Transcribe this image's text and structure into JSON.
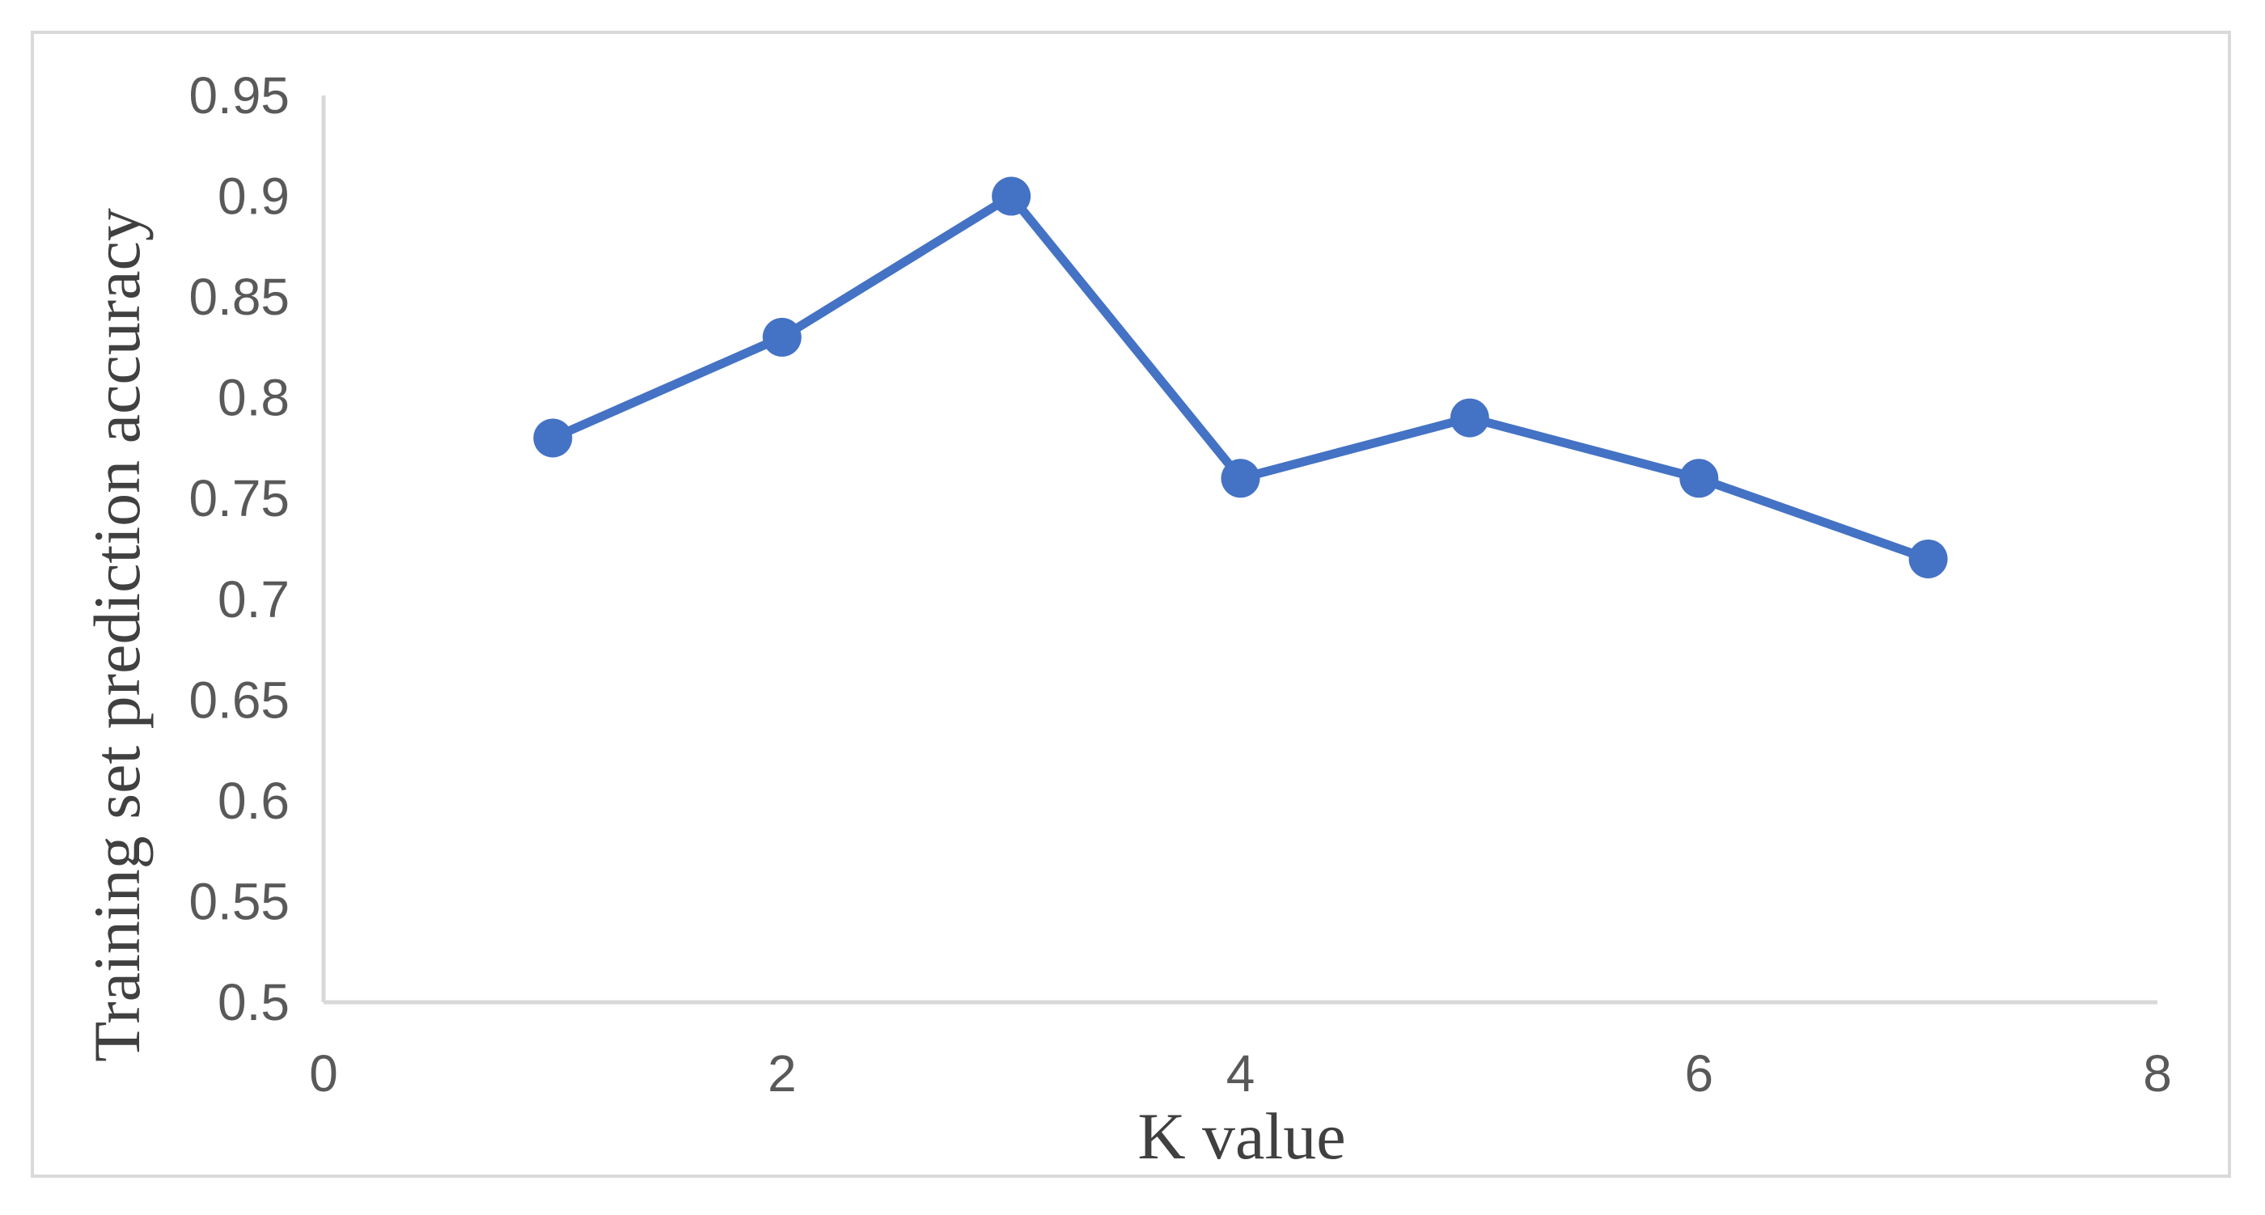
{
  "chart_data": {
    "type": "line",
    "title": "",
    "xlabel": "K value",
    "ylabel": "Training set prediction accuracy",
    "xlim": [
      0,
      8
    ],
    "ylim": [
      0.5,
      0.95
    ],
    "x_ticks": [
      "0",
      "2",
      "4",
      "6",
      "8"
    ],
    "y_ticks": [
      "0.5",
      "0.55",
      "0.6",
      "0.65",
      "0.7",
      "0.75",
      "0.8",
      "0.85",
      "0.9",
      "0.95"
    ],
    "grid": false,
    "legend": "none",
    "series": [
      {
        "color": "#4472C4",
        "marker": "circle",
        "x": [
          1,
          2,
          3,
          4,
          5,
          6,
          7
        ],
        "y": [
          0.78,
          0.83,
          0.9,
          0.76,
          0.79,
          0.76,
          0.72
        ]
      }
    ]
  }
}
